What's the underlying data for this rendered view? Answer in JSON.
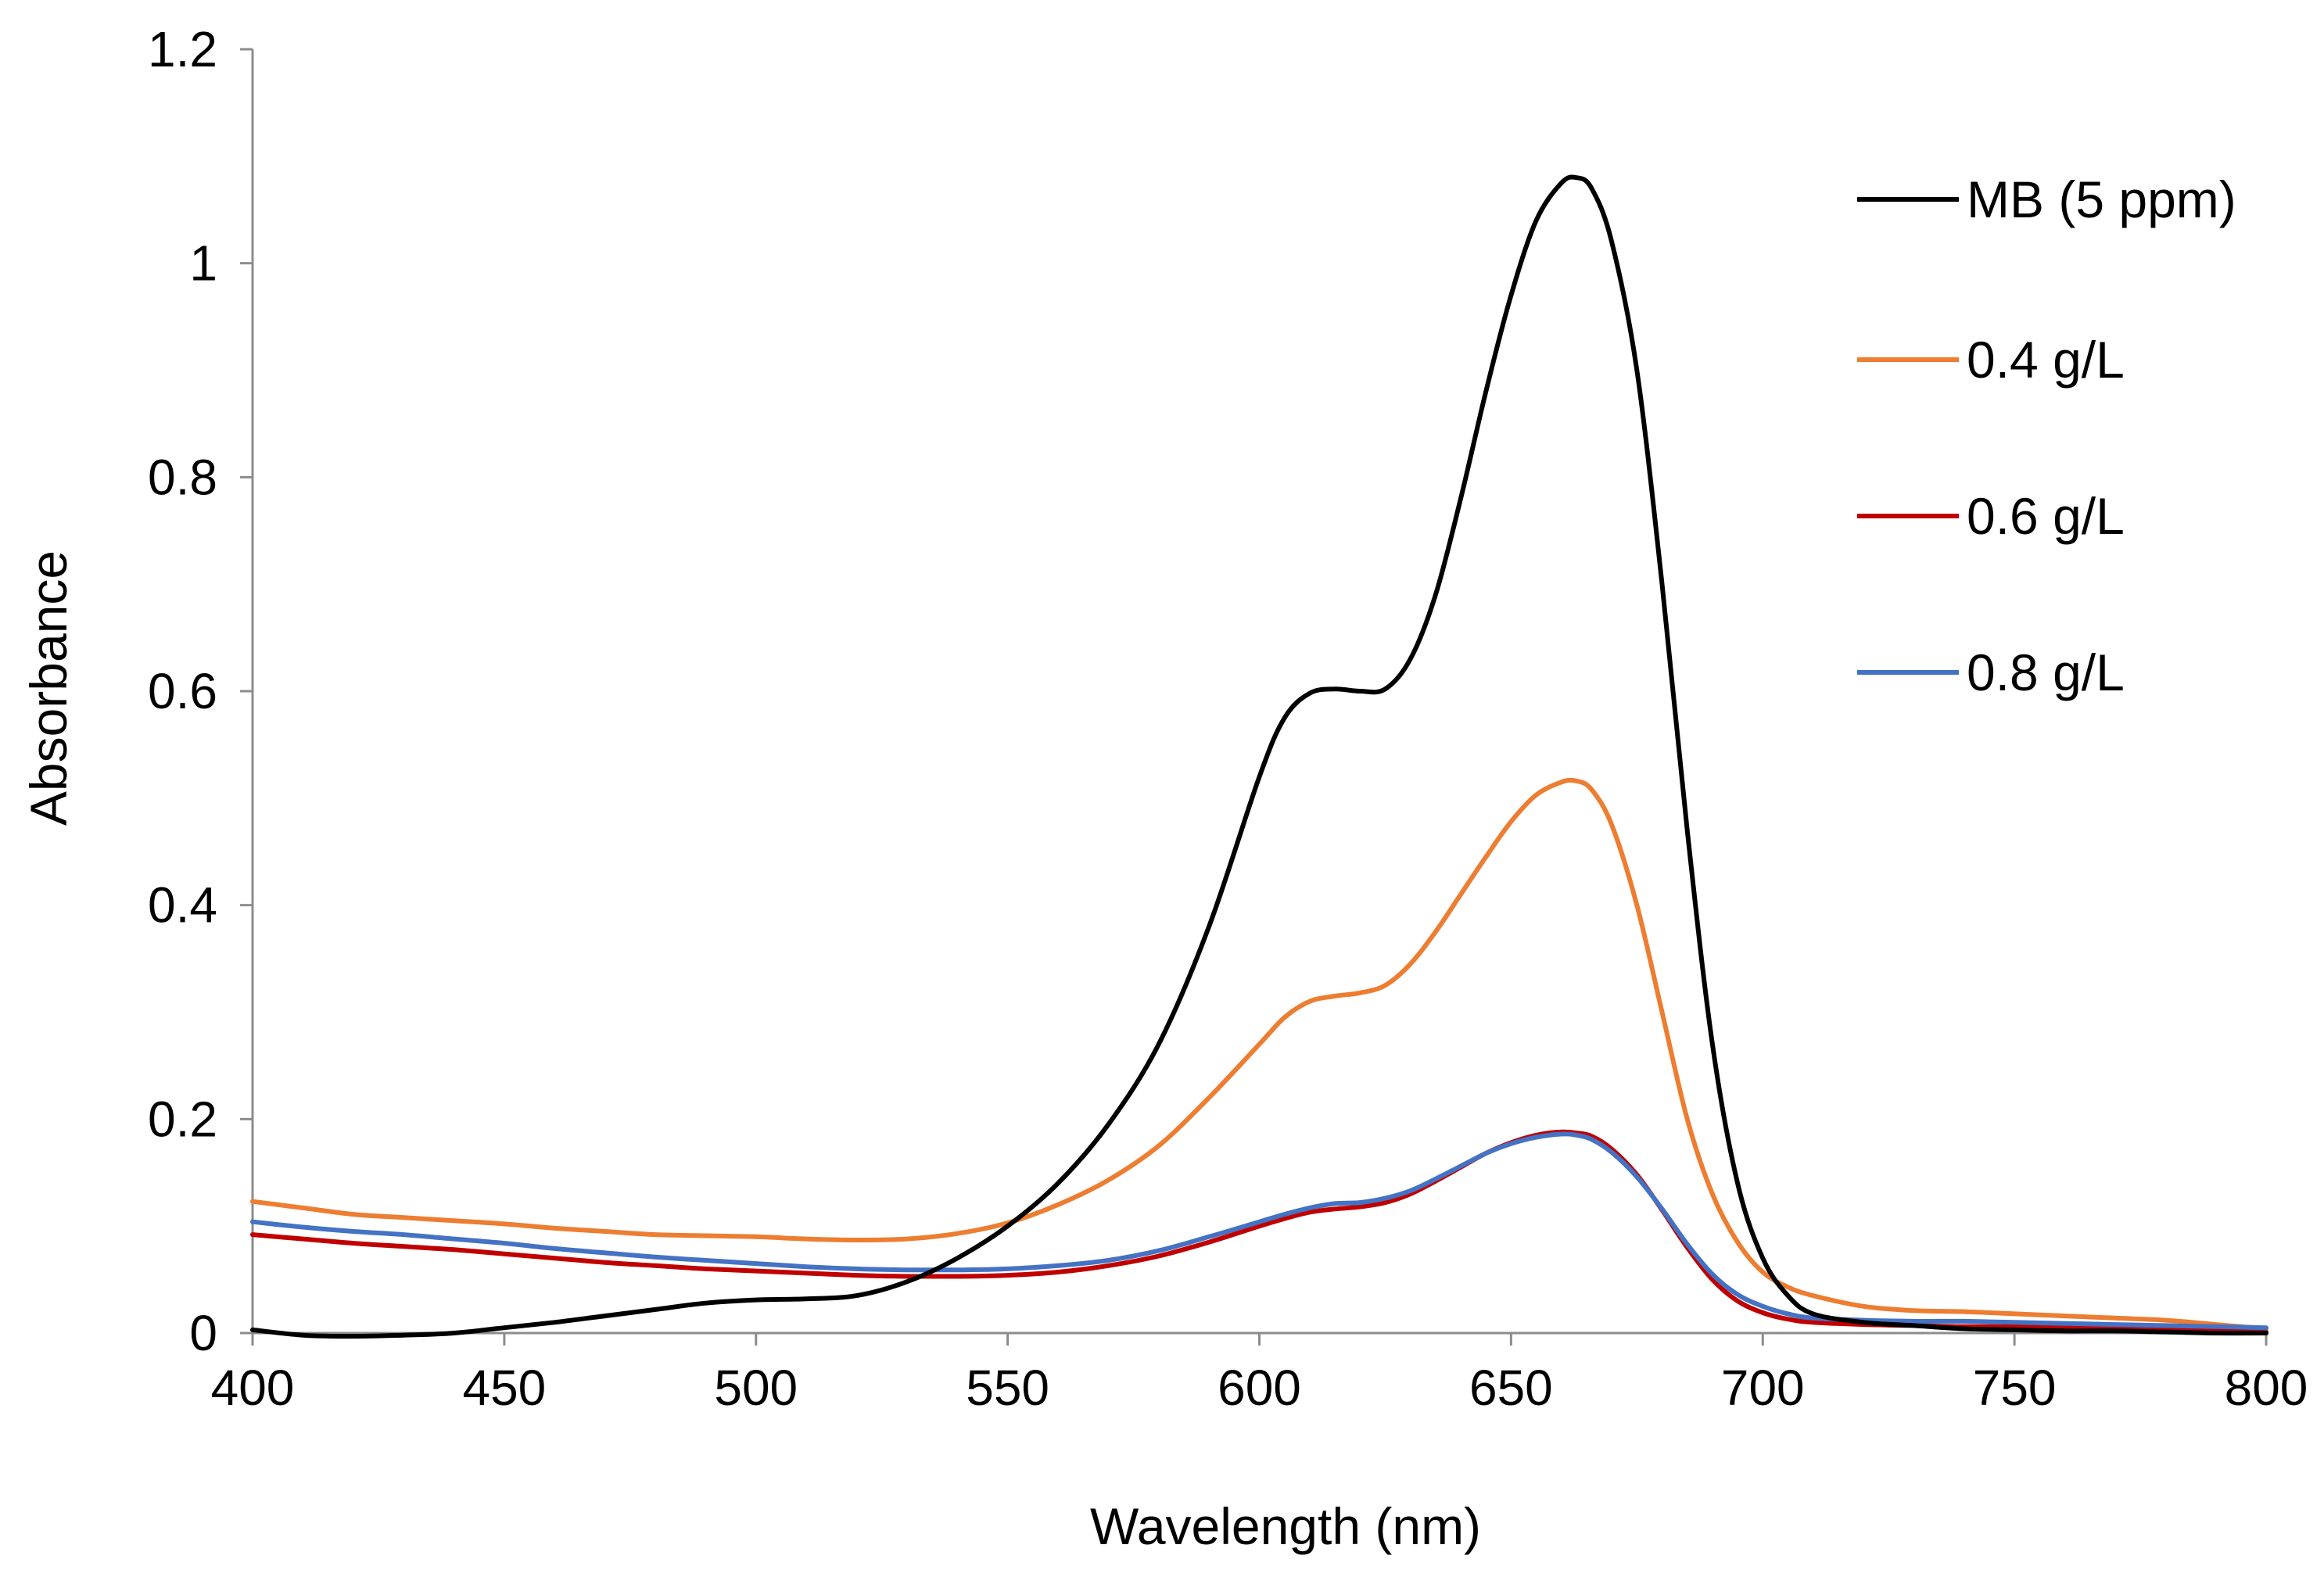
{
  "chart_data": {
    "type": "line",
    "title": "",
    "xlabel": "Wavelength (nm)",
    "ylabel": "Absorbance",
    "xlim": [
      400,
      800
    ],
    "ylim": [
      0,
      1.2
    ],
    "x_ticks": [
      400,
      450,
      500,
      550,
      600,
      650,
      700,
      750,
      800
    ],
    "x_tick_labels": [
      "400",
      "450",
      "500",
      "550",
      "600",
      "650",
      "700",
      "750",
      "800"
    ],
    "y_ticks": [
      0,
      0.2,
      0.4,
      0.6,
      0.8,
      1.0,
      1.2
    ],
    "y_tick_labels": [
      "0",
      "0.2",
      "0.4",
      "0.6",
      "0.8",
      "1",
      "1.2"
    ],
    "grid": false,
    "legend_position": "top-right",
    "series": [
      {
        "name": "MB (5 ppm)",
        "color": "#000000",
        "points": [
          [
            400,
            0.003
          ],
          [
            410,
            -0.002
          ],
          [
            420,
            -0.003
          ],
          [
            430,
            -0.002
          ],
          [
            440,
            0.0
          ],
          [
            450,
            0.005
          ],
          [
            460,
            0.01
          ],
          [
            470,
            0.016
          ],
          [
            480,
            0.022
          ],
          [
            490,
            0.028
          ],
          [
            500,
            0.031
          ],
          [
            510,
            0.032
          ],
          [
            520,
            0.035
          ],
          [
            530,
            0.048
          ],
          [
            540,
            0.07
          ],
          [
            550,
            0.1
          ],
          [
            560,
            0.14
          ],
          [
            570,
            0.195
          ],
          [
            580,
            0.27
          ],
          [
            590,
            0.38
          ],
          [
            600,
            0.52
          ],
          [
            605,
            0.575
          ],
          [
            610,
            0.598
          ],
          [
            615,
            0.602
          ],
          [
            620,
            0.6
          ],
          [
            625,
            0.602
          ],
          [
            630,
            0.63
          ],
          [
            635,
            0.69
          ],
          [
            640,
            0.78
          ],
          [
            645,
            0.88
          ],
          [
            650,
            0.97
          ],
          [
            655,
            1.04
          ],
          [
            660,
            1.075
          ],
          [
            663,
            1.08
          ],
          [
            666,
            1.07
          ],
          [
            670,
            1.02
          ],
          [
            675,
            0.9
          ],
          [
            680,
            0.7
          ],
          [
            685,
            0.47
          ],
          [
            690,
            0.27
          ],
          [
            695,
            0.14
          ],
          [
            700,
            0.07
          ],
          [
            705,
            0.035
          ],
          [
            710,
            0.018
          ],
          [
            720,
            0.01
          ],
          [
            730,
            0.007
          ],
          [
            740,
            0.004
          ],
          [
            750,
            0.003
          ],
          [
            760,
            0.002
          ],
          [
            770,
            0.002
          ],
          [
            780,
            0.001
          ],
          [
            790,
            0.0
          ],
          [
            800,
            0.0
          ]
        ]
      },
      {
        "name": "0.4 g/L",
        "color": "#ED7D31",
        "points": [
          [
            400,
            0.123
          ],
          [
            410,
            0.117
          ],
          [
            420,
            0.111
          ],
          [
            430,
            0.108
          ],
          [
            440,
            0.105
          ],
          [
            450,
            0.102
          ],
          [
            460,
            0.098
          ],
          [
            470,
            0.095
          ],
          [
            480,
            0.092
          ],
          [
            490,
            0.091
          ],
          [
            500,
            0.09
          ],
          [
            510,
            0.088
          ],
          [
            520,
            0.087
          ],
          [
            530,
            0.088
          ],
          [
            540,
            0.093
          ],
          [
            550,
            0.103
          ],
          [
            560,
            0.12
          ],
          [
            570,
            0.143
          ],
          [
            580,
            0.175
          ],
          [
            590,
            0.22
          ],
          [
            600,
            0.27
          ],
          [
            605,
            0.295
          ],
          [
            610,
            0.31
          ],
          [
            615,
            0.315
          ],
          [
            620,
            0.318
          ],
          [
            625,
            0.325
          ],
          [
            630,
            0.345
          ],
          [
            635,
            0.375
          ],
          [
            640,
            0.41
          ],
          [
            645,
            0.445
          ],
          [
            650,
            0.478
          ],
          [
            655,
            0.503
          ],
          [
            660,
            0.515
          ],
          [
            663,
            0.516
          ],
          [
            666,
            0.508
          ],
          [
            670,
            0.475
          ],
          [
            675,
            0.4
          ],
          [
            680,
            0.3
          ],
          [
            685,
            0.2
          ],
          [
            690,
            0.13
          ],
          [
            695,
            0.085
          ],
          [
            700,
            0.057
          ],
          [
            705,
            0.043
          ],
          [
            710,
            0.035
          ],
          [
            720,
            0.025
          ],
          [
            730,
            0.021
          ],
          [
            740,
            0.02
          ],
          [
            750,
            0.018
          ],
          [
            760,
            0.016
          ],
          [
            770,
            0.014
          ],
          [
            780,
            0.012
          ],
          [
            790,
            0.008
          ],
          [
            800,
            0.004
          ]
        ]
      },
      {
        "name": "0.6 g/L",
        "color": "#C00000",
        "points": [
          [
            400,
            0.092
          ],
          [
            410,
            0.088
          ],
          [
            420,
            0.084
          ],
          [
            430,
            0.081
          ],
          [
            440,
            0.078
          ],
          [
            450,
            0.074
          ],
          [
            460,
            0.07
          ],
          [
            470,
            0.066
          ],
          [
            480,
            0.063
          ],
          [
            490,
            0.06
          ],
          [
            500,
            0.058
          ],
          [
            510,
            0.056
          ],
          [
            520,
            0.054
          ],
          [
            530,
            0.053
          ],
          [
            540,
            0.053
          ],
          [
            550,
            0.054
          ],
          [
            560,
            0.057
          ],
          [
            570,
            0.063
          ],
          [
            580,
            0.072
          ],
          [
            590,
            0.085
          ],
          [
            600,
            0.1
          ],
          [
            605,
            0.107
          ],
          [
            610,
            0.113
          ],
          [
            615,
            0.116
          ],
          [
            620,
            0.118
          ],
          [
            625,
            0.122
          ],
          [
            630,
            0.13
          ],
          [
            635,
            0.142
          ],
          [
            640,
            0.155
          ],
          [
            645,
            0.168
          ],
          [
            650,
            0.178
          ],
          [
            655,
            0.185
          ],
          [
            660,
            0.188
          ],
          [
            663,
            0.187
          ],
          [
            666,
            0.184
          ],
          [
            670,
            0.172
          ],
          [
            675,
            0.148
          ],
          [
            680,
            0.115
          ],
          [
            685,
            0.08
          ],
          [
            690,
            0.05
          ],
          [
            695,
            0.03
          ],
          [
            700,
            0.019
          ],
          [
            705,
            0.013
          ],
          [
            710,
            0.01
          ],
          [
            720,
            0.008
          ],
          [
            730,
            0.007
          ],
          [
            740,
            0.006
          ],
          [
            750,
            0.006
          ],
          [
            760,
            0.005
          ],
          [
            770,
            0.004
          ],
          [
            780,
            0.003
          ],
          [
            790,
            0.002
          ],
          [
            800,
            0.001
          ]
        ]
      },
      {
        "name": "0.8 g/L",
        "color": "#4472C4",
        "points": [
          [
            400,
            0.104
          ],
          [
            410,
            0.099
          ],
          [
            420,
            0.095
          ],
          [
            430,
            0.092
          ],
          [
            440,
            0.088
          ],
          [
            450,
            0.084
          ],
          [
            460,
            0.079
          ],
          [
            470,
            0.075
          ],
          [
            480,
            0.071
          ],
          [
            490,
            0.068
          ],
          [
            500,
            0.065
          ],
          [
            510,
            0.062
          ],
          [
            520,
            0.06
          ],
          [
            530,
            0.059
          ],
          [
            540,
            0.059
          ],
          [
            550,
            0.06
          ],
          [
            560,
            0.063
          ],
          [
            570,
            0.068
          ],
          [
            580,
            0.077
          ],
          [
            590,
            0.09
          ],
          [
            600,
            0.104
          ],
          [
            605,
            0.111
          ],
          [
            610,
            0.117
          ],
          [
            615,
            0.121
          ],
          [
            620,
            0.122
          ],
          [
            625,
            0.126
          ],
          [
            630,
            0.133
          ],
          [
            635,
            0.144
          ],
          [
            640,
            0.156
          ],
          [
            645,
            0.168
          ],
          [
            650,
            0.177
          ],
          [
            655,
            0.183
          ],
          [
            660,
            0.186
          ],
          [
            663,
            0.185
          ],
          [
            666,
            0.181
          ],
          [
            670,
            0.169
          ],
          [
            675,
            0.146
          ],
          [
            680,
            0.116
          ],
          [
            685,
            0.083
          ],
          [
            690,
            0.055
          ],
          [
            695,
            0.036
          ],
          [
            700,
            0.025
          ],
          [
            705,
            0.018
          ],
          [
            710,
            0.014
          ],
          [
            720,
            0.012
          ],
          [
            730,
            0.011
          ],
          [
            740,
            0.011
          ],
          [
            750,
            0.01
          ],
          [
            760,
            0.009
          ],
          [
            770,
            0.008
          ],
          [
            780,
            0.007
          ],
          [
            790,
            0.006
          ],
          [
            800,
            0.005
          ]
        ]
      }
    ]
  }
}
